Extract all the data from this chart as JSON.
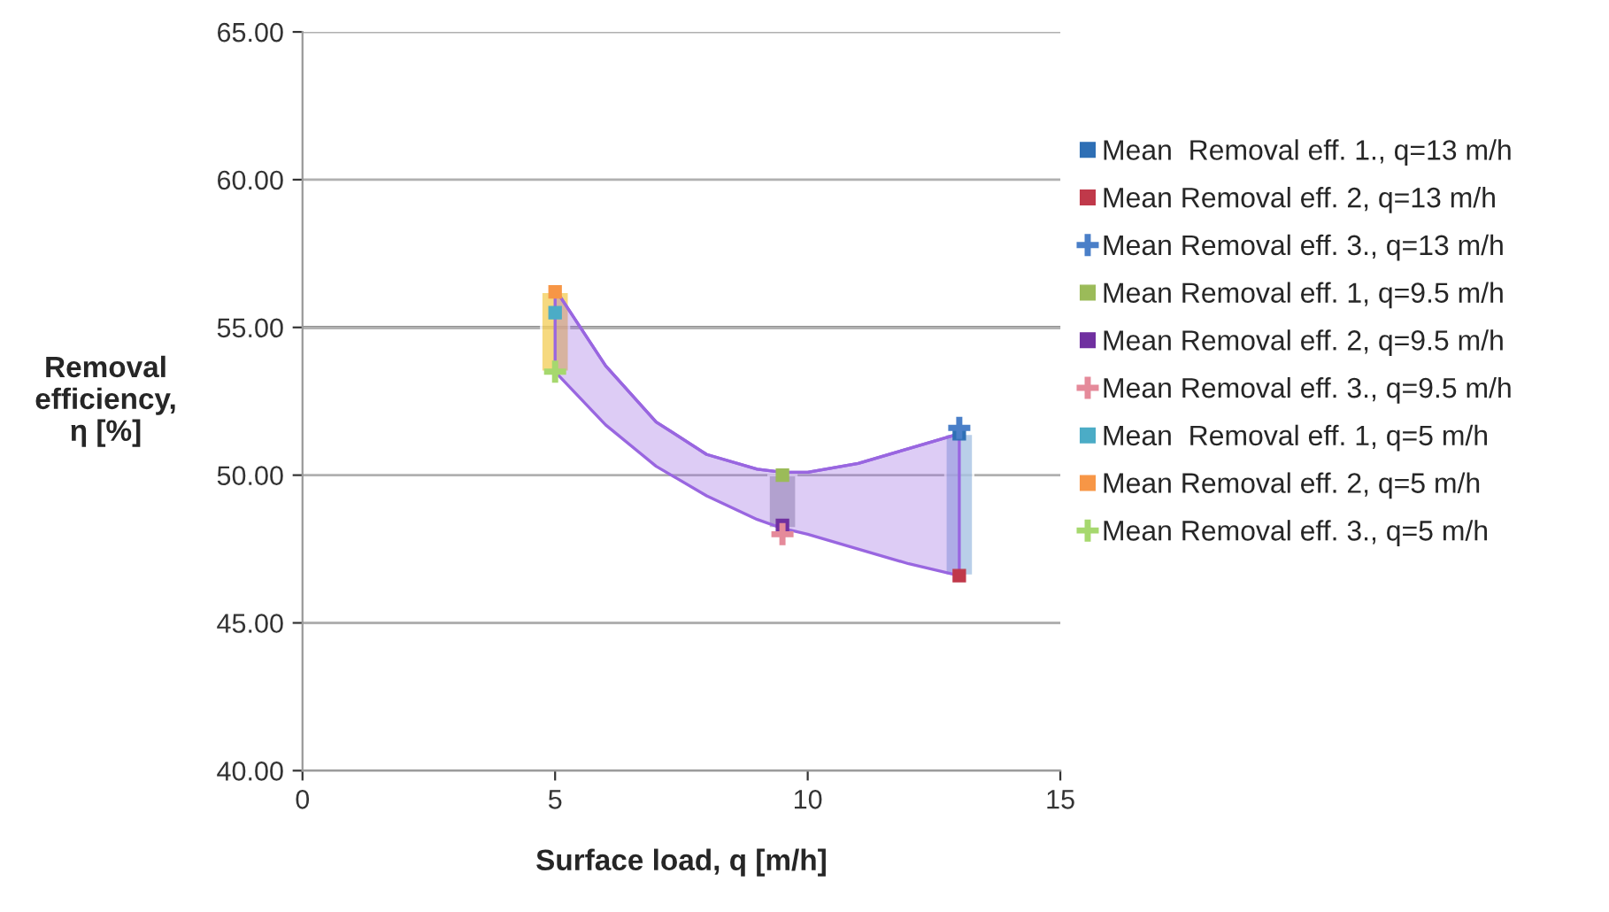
{
  "chart_data": {
    "type": "scatter",
    "xlabel": "Surface load, q [m/h]",
    "ylabel": "Removal\nefficiency,\nη [%]",
    "xlim": [
      0,
      15
    ],
    "xticks": [
      0,
      5,
      10,
      15
    ],
    "ylim": [
      40,
      65
    ],
    "yticks": [
      {
        "value": 40,
        "label": "40.00"
      },
      {
        "value": 45,
        "label": "45.00"
      },
      {
        "value": 50,
        "label": "50.00"
      },
      {
        "value": 55,
        "label": "55.00"
      },
      {
        "value": 60,
        "label": "60.00"
      },
      {
        "value": 65,
        "label": "65.00"
      }
    ],
    "grid": "y",
    "legend": "right",
    "ref_lines": [
      {
        "axis": "y",
        "value": 55,
        "color": "#707070"
      }
    ],
    "series": [
      {
        "type": "line",
        "color": "#9966e0",
        "x": [
          5,
          6,
          7,
          8,
          9,
          9.5,
          10,
          11,
          12,
          13
        ],
        "values": [
          56.3,
          53.7,
          51.8,
          50.7,
          50.2,
          50.1,
          50.1,
          50.4,
          50.9,
          51.4
        ],
        "upper": [
          56.3,
          53.7,
          51.8,
          50.7,
          50.2,
          50.1,
          50.1,
          50.4,
          50.9,
          51.4
        ],
        "lower": [
          53.5,
          51.7,
          50.3,
          49.3,
          48.5,
          48.2,
          48.0,
          47.5,
          47.0,
          46.6
        ]
      },
      {
        "type": "bar",
        "x": [
          5,
          9.5,
          13
        ],
        "base": [
          53.5,
          48.2,
          46.6
        ],
        "values": [
          2.7,
          1.8,
          4.8
        ],
        "colors": [
          "#f5d060",
          "#b0b0b8",
          "#a8c4e4"
        ]
      },
      {
        "name": "Mean  Removal eff. 1., q=13 m/h",
        "color": "#2e6fb5",
        "marker": "square",
        "x": [
          13
        ],
        "values": [
          51.4
        ]
      },
      {
        "name": "Mean Removal eff. 2, q=13 m/h",
        "color": "#c0394a",
        "marker": "square",
        "x": [
          13
        ],
        "values": [
          46.6
        ]
      },
      {
        "name": "Mean Removal eff. 3., q=13 m/h",
        "color": "#4a7fc8",
        "marker": "cross",
        "x": [
          13
        ],
        "values": [
          51.6
        ]
      },
      {
        "name": "Mean Removal eff. 1, q=9.5 m/h",
        "color": "#9bbb59",
        "marker": "square",
        "x": [
          9.5
        ],
        "values": [
          50.0
        ]
      },
      {
        "name": "Mean Removal eff. 2, q=9.5 m/h",
        "color": "#7030a0",
        "marker": "square",
        "x": [
          9.5
        ],
        "values": [
          48.3
        ]
      },
      {
        "name": "Mean Removal eff. 3., q=9.5 m/h",
        "color": "#e58a9a",
        "marker": "cross",
        "x": [
          9.5
        ],
        "values": [
          48.0
        ]
      },
      {
        "name": "Mean  Removal eff. 1, q=5 m/h",
        "color": "#4bacc6",
        "marker": "square",
        "x": [
          5
        ],
        "values": [
          55.5
        ]
      },
      {
        "name": "Mean Removal eff. 2, q=5 m/h",
        "color": "#f79646",
        "marker": "square",
        "x": [
          5
        ],
        "values": [
          56.2
        ]
      },
      {
        "name": "Mean Removal eff. 3., q=5 m/h",
        "color": "#a6d86e",
        "marker": "cross",
        "x": [
          5
        ],
        "values": [
          53.5
        ]
      }
    ]
  }
}
